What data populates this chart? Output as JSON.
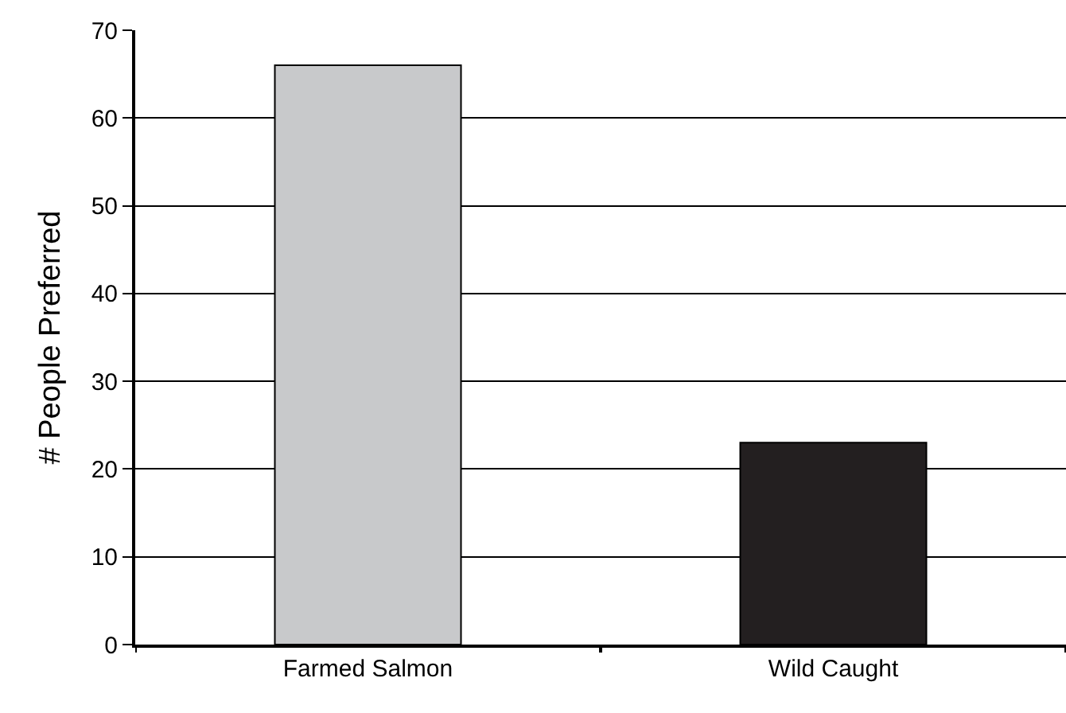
{
  "chart_data": {
    "type": "bar",
    "ylabel": "# People Preferred",
    "categories": [
      "Farmed Salmon",
      "Wild Caught"
    ],
    "values": [
      66,
      23
    ],
    "colors": [
      "#c8c9cb",
      "#231f20"
    ],
    "ylim": [
      0,
      70
    ],
    "yticks": [
      0,
      10,
      20,
      30,
      40,
      50,
      60,
      70
    ],
    "grid": "y"
  }
}
